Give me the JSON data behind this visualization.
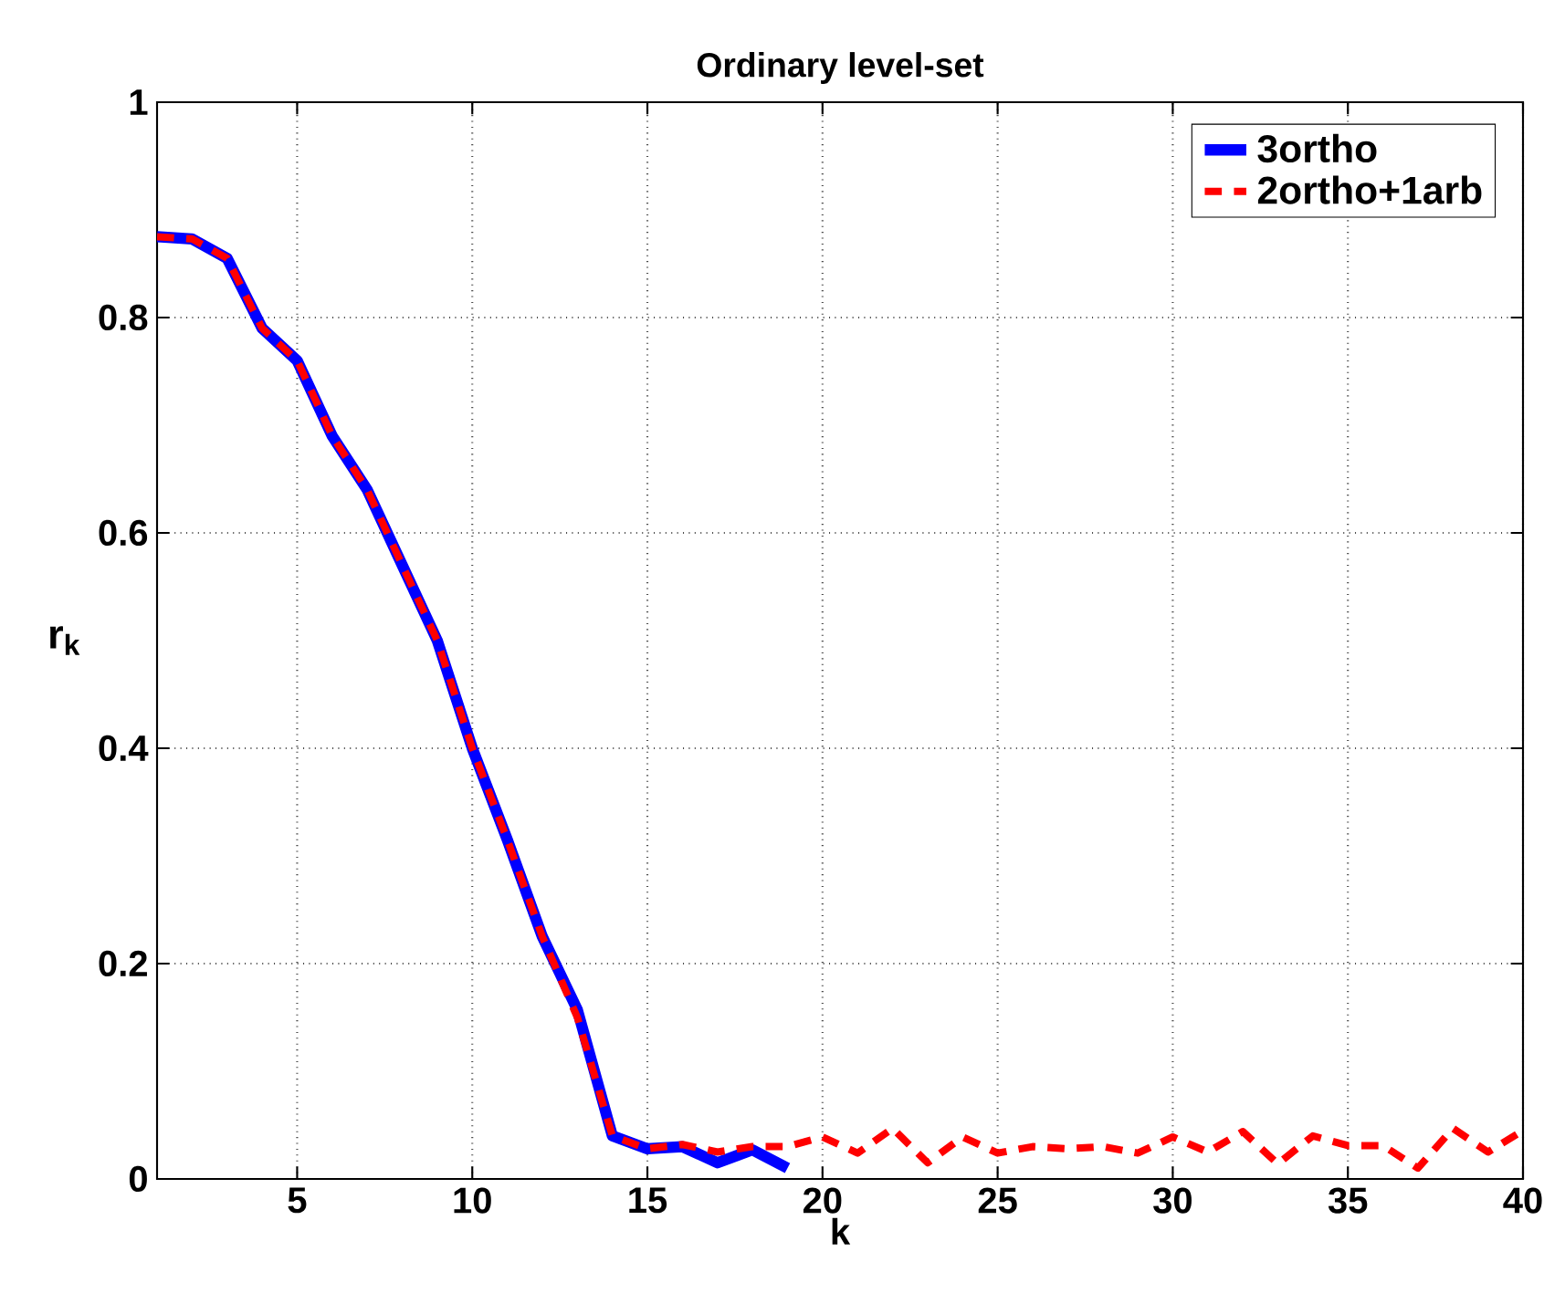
{
  "chart_data": {
    "type": "line",
    "title": "Ordinary level-set",
    "xlabel": "k",
    "ylabel": "r$_{k}$",
    "x": [
      1,
      2,
      3,
      4,
      5,
      6,
      7,
      8,
      9,
      10,
      11,
      12,
      13,
      14,
      15,
      16,
      17,
      18,
      19,
      20,
      21,
      22,
      23,
      24,
      25,
      26,
      27,
      28,
      29,
      30,
      31,
      32,
      33,
      34,
      35,
      36,
      37,
      38,
      39,
      40
    ],
    "xlim": [
      1,
      40
    ],
    "ylim": [
      0,
      1
    ],
    "xticks": [
      5,
      10,
      15,
      20,
      25,
      30,
      35,
      40
    ],
    "yticks": [
      0,
      0.2,
      0.4,
      0.6,
      0.8,
      1
    ],
    "grid": true,
    "legend": "top right",
    "marker": "none",
    "series": [
      {
        "name": "3ortho",
        "color": "#0000ff",
        "line_style": "solid",
        "values": [
          0.875,
          0.873,
          0.855,
          0.79,
          0.76,
          0.69,
          0.64,
          0.57,
          0.5,
          0.4,
          0.315,
          0.225,
          0.157,
          0.04,
          0.028,
          0.03,
          0.015,
          0.027,
          0.01,
          null,
          null,
          null,
          null,
          null,
          null,
          null,
          null,
          null,
          null,
          null,
          null,
          null,
          null,
          null,
          null,
          null,
          null,
          null,
          null,
          null
        ]
      },
      {
        "name": "2ortho+1arb",
        "color": "#ff0000",
        "line_style": "dashed",
        "values": [
          0.875,
          0.873,
          0.855,
          0.79,
          0.76,
          0.69,
          0.64,
          0.57,
          0.5,
          0.4,
          0.315,
          0.225,
          0.15,
          0.04,
          0.028,
          0.032,
          0.025,
          0.03,
          0.03,
          0.039,
          0.024,
          0.047,
          0.015,
          0.039,
          0.024,
          0.03,
          0.028,
          0.03,
          0.024,
          0.039,
          0.025,
          0.044,
          0.014,
          0.04,
          0.031,
          0.031,
          0.01,
          0.047,
          0.025,
          0.045
        ]
      }
    ]
  }
}
